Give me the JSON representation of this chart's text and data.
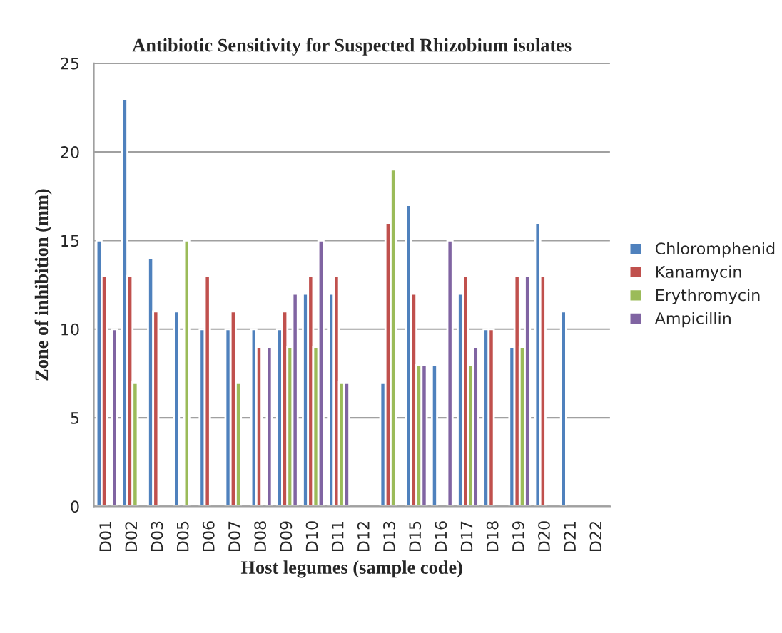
{
  "chart_data": {
    "type": "bar",
    "title": "Antibiotic Sensitivity for Suspected Rhizobium isolates",
    "xlabel": "Host legumes (sample code)",
    "ylabel": "Zone of inhibition (mm)",
    "categories": [
      "D01",
      "D02",
      "D03",
      "D05",
      "D06",
      "D07",
      "D08",
      "D09",
      "D10",
      "D11",
      "D12",
      "D13",
      "D15",
      "D16",
      "D17",
      "D18",
      "D19",
      "D20",
      "D21",
      "D22"
    ],
    "series": [
      {
        "name": "Chloromphenid",
        "color": "#4f81bd",
        "values": [
          15,
          23,
          14,
          11,
          10,
          10,
          10,
          10,
          12,
          12,
          null,
          7,
          17,
          8,
          12,
          10,
          9,
          16,
          11,
          null
        ]
      },
      {
        "name": "Kanamycin",
        "color": "#c0504d",
        "values": [
          13,
          13,
          11,
          null,
          13,
          11,
          9,
          11,
          13,
          13,
          null,
          16,
          12,
          null,
          13,
          10,
          13,
          13,
          null,
          null
        ]
      },
      {
        "name": "Erythromycin",
        "color": "#9bbb59",
        "values": [
          null,
          7,
          null,
          15,
          null,
          7,
          null,
          9,
          9,
          7,
          null,
          19,
          8,
          null,
          8,
          null,
          9,
          null,
          null,
          null
        ]
      },
      {
        "name": "Ampicillin",
        "color": "#8064a2",
        "values": [
          10,
          null,
          null,
          null,
          null,
          null,
          9,
          12,
          15,
          7,
          null,
          null,
          8,
          15,
          9,
          null,
          13,
          null,
          null,
          null
        ]
      }
    ],
    "ylim": [
      0,
      25
    ],
    "yticks": [
      0,
      5,
      10,
      15,
      20,
      25
    ],
    "grid": "y",
    "legend": "right"
  }
}
